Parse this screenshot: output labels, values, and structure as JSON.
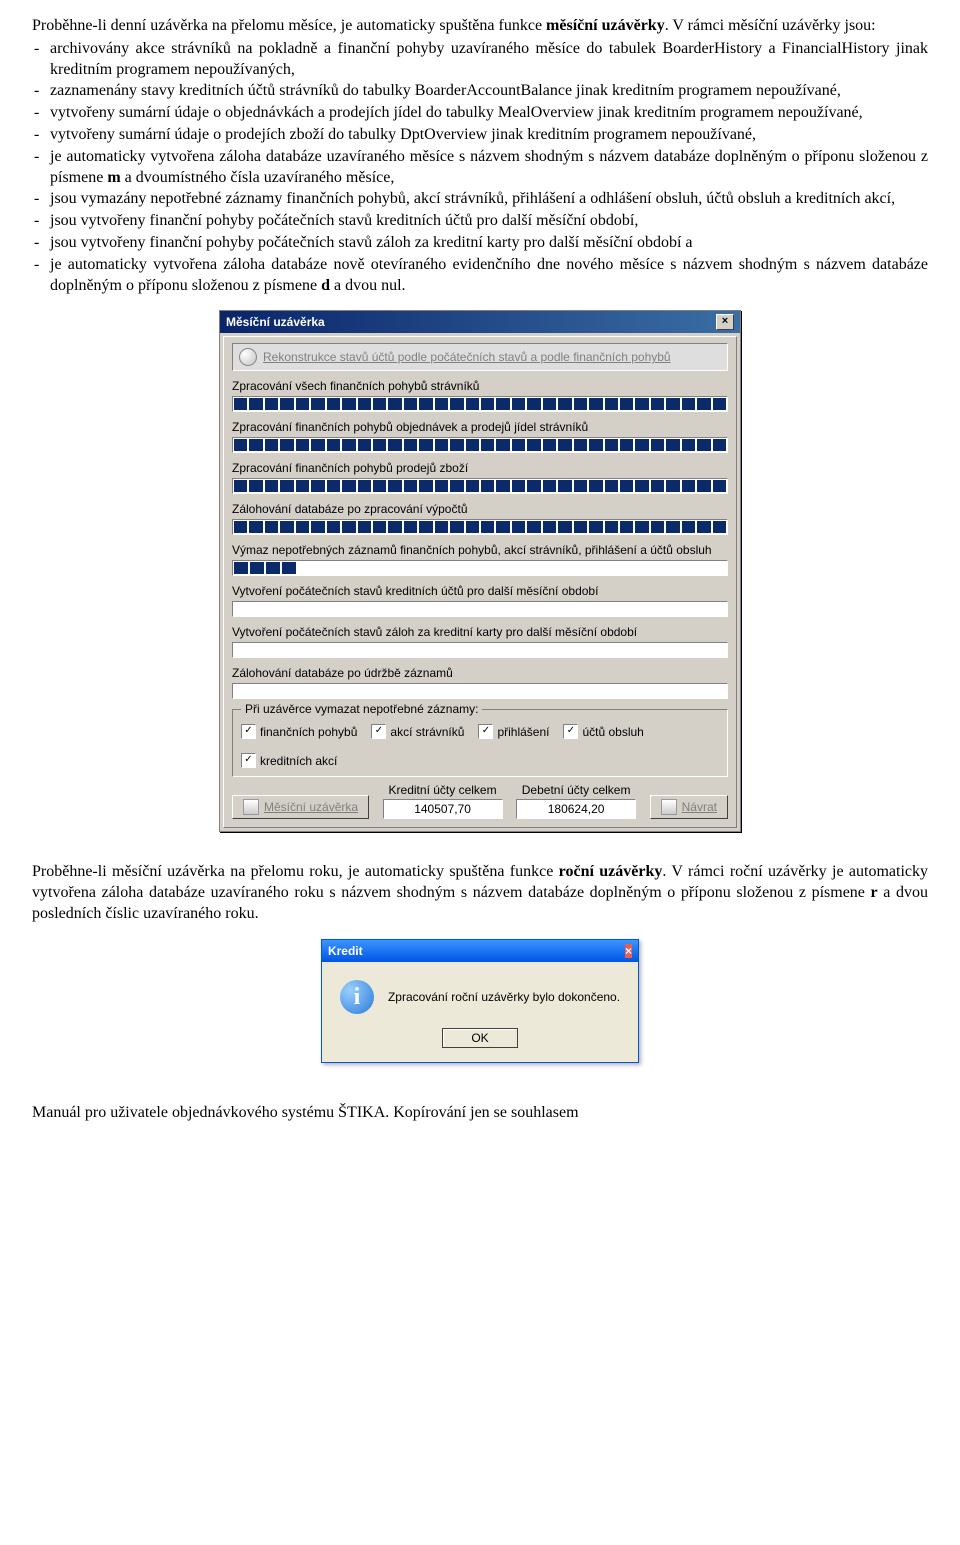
{
  "para1_parts": {
    "a": "Proběhne-li denní uzávěrka na přelomu měsíce, je automaticky spuštěna funkce ",
    "b": "měsíční uzávěrky",
    "c": ". V rámci měsíční uzávěrky jsou:"
  },
  "list1": [
    "archivovány akce strávníků na pokladně a finanční pohyby uzavíraného měsíce do tabulek BoarderHistory a FinancialHistory jinak kreditním programem nepoužívaných,",
    "zaznamenány stavy kreditních účtů strávníků do tabulky BoarderAccountBalance jinak kreditním programem nepoužívané,",
    "vytvořeny sumární údaje o objednávkách a prodejích jídel do tabulky MealOverview jinak kreditním programem nepoužívané,",
    "vytvořeny sumární údaje o prodejích zboží do tabulky DptOverview jinak kreditním programem nepoužívané,"
  ],
  "list1b": {
    "pre": "je automaticky vytvořena záloha databáze uzavíraného měsíce s názvem shodným s názvem databáze doplněným o příponu složenou z písmene ",
    "m": "m",
    "post": " a dvoumístného čísla uzavíraného měsíce,"
  },
  "list1c": [
    "jsou vymazány nepotřebné záznamy finančních pohybů, akcí strávníků, přihlášení a odhlášení obsluh, účtů obsluh a kreditních akcí,",
    "jsou vytvořeny finanční pohyby počátečních stavů kreditních účtů pro další měsíční období,",
    "jsou vytvořeny finanční pohyby počátečních stavů záloh za kreditní karty pro další měsíční období a"
  ],
  "list1d": {
    "pre": "je automaticky vytvořena záloha databáze nově otevíraného evidenčního dne nového měsíce s názvem shodným s názvem databáze doplněným o příponu složenou z písmene ",
    "d": "d",
    "post": " a dvou nul."
  },
  "dialog": {
    "title": "Měsíční uzávěrka",
    "rekon": "Rekonstrukce stavů účtů podle počátečních stavů a podle finančních pohybů",
    "tasks": [
      {
        "label": "Zpracování všech finančních pohybů strávníků",
        "segments": 32
      },
      {
        "label": "Zpracování finančních pohybů objednávek a prodejů jídel strávníků",
        "segments": 32
      },
      {
        "label": "Zpracování finančních pohybů prodejů zboží",
        "segments": 32
      },
      {
        "label": "Zálohování databáze po zpracování výpočtů",
        "segments": 32
      },
      {
        "label": "Výmaz nepotřebných záznamů finančních pohybů, akcí strávníků, přihlášení a účtů obsluh",
        "segments": 4
      },
      {
        "label": "Vytvoření počátečních stavů kreditních účtů pro další měsíční období",
        "segments": 0
      },
      {
        "label": "Vytvoření počátečních stavů záloh za kreditní karty pro další měsíční období",
        "segments": 0
      },
      {
        "label": "Zálohování databáze po údržbě záznamů",
        "segments": 0
      }
    ],
    "group_legend": "Při uzávěrce vymazat nepotřebné záznamy:",
    "checks": [
      "finančních pohybů",
      "akcí strávníků",
      "přihlášení",
      "účtů obsluh",
      "kreditních akcí"
    ],
    "btn_uzaverka": "Měsíční uzávěrka",
    "kredit_label": "Kreditní účty celkem",
    "kredit_value": "140507,70",
    "debet_label": "Debetní účty celkem",
    "debet_value": "180624,20",
    "btn_navrat": "Návrat"
  },
  "para2_parts": {
    "a": "Proběhne-li měsíční uzávěrka na přelomu roku, je automaticky spuštěna funkce ",
    "b": "roční uzávěrky",
    "c": ". V rámci roční uzávěrky je automaticky vytvořena záloha databáze uzavíraného roku s názvem shodným s názvem databáze doplněným o příponu složenou z písmene ",
    "r": "r",
    "d": " a dvou posledních číslic uzavíraného roku."
  },
  "msgbox": {
    "title": "Kredit",
    "text": "Zpracování roční uzávěrky bylo dokončeno.",
    "ok": "OK"
  },
  "footer": "Manuál pro uživatele objednávkového systému ŠTIKA. Kopírování jen se souhlasem"
}
